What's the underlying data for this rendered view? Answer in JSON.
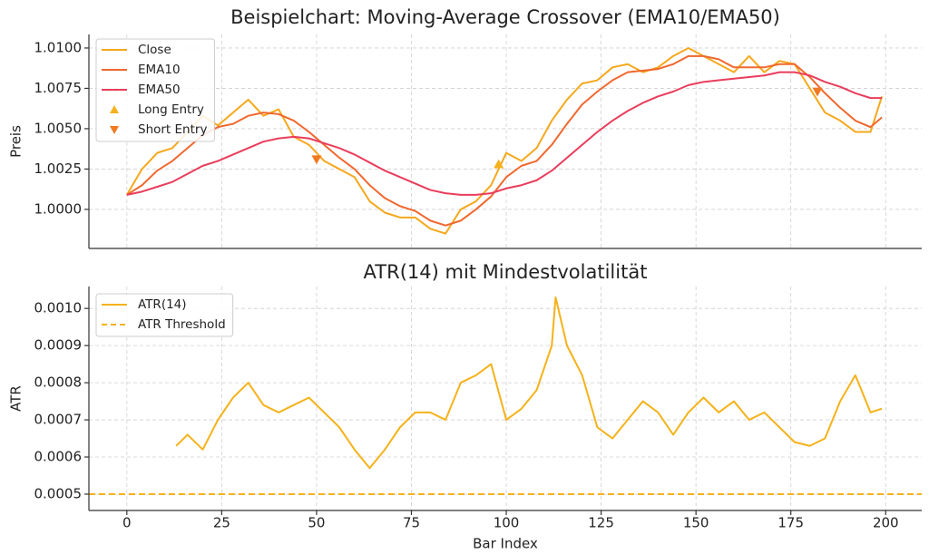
{
  "chart_data": [
    {
      "type": "line",
      "title": "Beispielchart: Moving-Average Crossover (EMA10/EMA50)",
      "ylabel": "Preis",
      "x": [
        0,
        4,
        8,
        12,
        16,
        20,
        24,
        28,
        32,
        36,
        40,
        44,
        48,
        52,
        56,
        60,
        64,
        68,
        72,
        76,
        80,
        84,
        88,
        92,
        96,
        100,
        104,
        108,
        112,
        116,
        120,
        124,
        128,
        132,
        136,
        140,
        144,
        148,
        152,
        156,
        160,
        164,
        168,
        172,
        176,
        180,
        184,
        188,
        192,
        196,
        199
      ],
      "series": [
        {
          "name": "Close",
          "color": "#f5a81c",
          "values": [
            1.0009,
            1.0025,
            1.0035,
            1.0038,
            1.0048,
            1.0058,
            1.0052,
            1.006,
            1.0068,
            1.0058,
            1.0062,
            1.0045,
            1.004,
            1.003,
            1.0025,
            1.002,
            1.0005,
            0.9998,
            0.9995,
            0.9995,
            0.9988,
            0.9985,
            1.0,
            1.0005,
            1.0015,
            1.0035,
            1.003,
            1.0038,
            1.0055,
            1.0068,
            1.0078,
            1.008,
            1.0088,
            1.009,
            1.0085,
            1.0088,
            1.0095,
            1.01,
            1.0095,
            1.009,
            1.0085,
            1.0095,
            1.0085,
            1.0092,
            1.009,
            1.0075,
            1.006,
            1.0055,
            1.0048,
            1.0048,
            1.007
          ]
        },
        {
          "name": "EMA10",
          "color": "#f0682e",
          "values": [
            1.0009,
            1.0015,
            1.0024,
            1.003,
            1.0038,
            1.0046,
            1.0051,
            1.0053,
            1.0058,
            1.006,
            1.0059,
            1.0055,
            1.0048,
            1.004,
            1.0032,
            1.0025,
            1.0015,
            1.0007,
            1.0002,
            0.9999,
            0.9993,
            0.999,
            0.9993,
            1.0,
            1.0008,
            1.002,
            1.0027,
            1.003,
            1.004,
            1.0053,
            1.0065,
            1.0073,
            1.008,
            1.0085,
            1.0086,
            1.0087,
            1.009,
            1.0095,
            1.0095,
            1.0093,
            1.0088,
            1.0088,
            1.0088,
            1.009,
            1.009,
            1.0082,
            1.0072,
            1.0063,
            1.0055,
            1.0051,
            1.0057
          ]
        },
        {
          "name": "EMA50",
          "color": "#e93d5c",
          "values": [
            1.0009,
            1.0011,
            1.0014,
            1.0017,
            1.0022,
            1.0027,
            1.003,
            1.0034,
            1.0038,
            1.0042,
            1.0044,
            1.0045,
            1.0044,
            1.0041,
            1.0038,
            1.0034,
            1.0029,
            1.0024,
            1.002,
            1.0016,
            1.0012,
            1.001,
            1.0009,
            1.0009,
            1.001,
            1.0013,
            1.0015,
            1.0018,
            1.0024,
            1.0032,
            1.004,
            1.0048,
            1.0055,
            1.0061,
            1.0066,
            1.007,
            1.0073,
            1.0077,
            1.0079,
            1.008,
            1.0081,
            1.0082,
            1.0083,
            1.0085,
            1.0085,
            1.0083,
            1.0079,
            1.0076,
            1.0072,
            1.0069,
            1.0069
          ]
        }
      ],
      "markers": [
        {
          "name": "Long Entry",
          "color": "#f5b21a",
          "shape": "up",
          "x": [
            98
          ],
          "y": [
            1.0028
          ]
        },
        {
          "name": "Short Entry",
          "color": "#f07a22",
          "shape": "down",
          "x": [
            50,
            182
          ],
          "y": [
            1.0031,
            1.0073
          ]
        }
      ],
      "xlim": [
        -10,
        209.5
      ],
      "ylim": [
        0.99758,
        1.01084
      ],
      "yticks": [
        {
          "value": 1.0,
          "label": "1.0000"
        },
        1.0025,
        {
          "value": 1.005,
          "label": "1.0050"
        },
        1.0075,
        {
          "value": 1.01,
          "label": "1.0100"
        }
      ],
      "grid": true,
      "legend": "upper left"
    },
    {
      "type": "line",
      "title": "ATR(14) mit Mindestvolatilität",
      "ylabel": "ATR",
      "xlabel": "Bar Index",
      "x": [
        13,
        16,
        20,
        24,
        28,
        32,
        36,
        40,
        44,
        48,
        52,
        56,
        60,
        64,
        68,
        72,
        76,
        80,
        84,
        88,
        92,
        96,
        100,
        104,
        108,
        112,
        113,
        116,
        120,
        124,
        128,
        132,
        136,
        140,
        144,
        148,
        152,
        156,
        160,
        164,
        168,
        172,
        176,
        180,
        184,
        188,
        192,
        196,
        199
      ],
      "series": [
        {
          "name": "ATR(14)",
          "color": "#f5b21a",
          "values": [
            0.00063,
            0.00066,
            0.00062,
            0.0007,
            0.00076,
            0.0008,
            0.00074,
            0.00072,
            0.00074,
            0.00076,
            0.00072,
            0.00068,
            0.00062,
            0.00057,
            0.00062,
            0.00068,
            0.00072,
            0.00072,
            0.0007,
            0.0008,
            0.00082,
            0.00085,
            0.0007,
            0.00073,
            0.00078,
            0.0009,
            0.00103,
            0.0009,
            0.00082,
            0.00068,
            0.00065,
            0.0007,
            0.00075,
            0.00072,
            0.00066,
            0.00072,
            0.00076,
            0.00072,
            0.00075,
            0.0007,
            0.00072,
            0.00068,
            0.00064,
            0.00063,
            0.00065,
            0.00075,
            0.00082,
            0.00072,
            0.00073
          ]
        }
      ],
      "hlines": [
        {
          "name": "ATR Threshold",
          "color": "#f5b21a",
          "value": 0.0005,
          "dashed": true
        }
      ],
      "xlim": [
        -10,
        209.5
      ],
      "ylim": [
        0.000456,
        0.001059
      ],
      "xticks": [
        0,
        25,
        50,
        75,
        100,
        125,
        150,
        175,
        200
      ],
      "yticks": [
        0.0005,
        0.0006,
        0.0007,
        0.0008,
        0.0009,
        {
          "value": 0.001,
          "label": "0.0010"
        }
      ],
      "grid": true,
      "legend": "upper left"
    }
  ]
}
